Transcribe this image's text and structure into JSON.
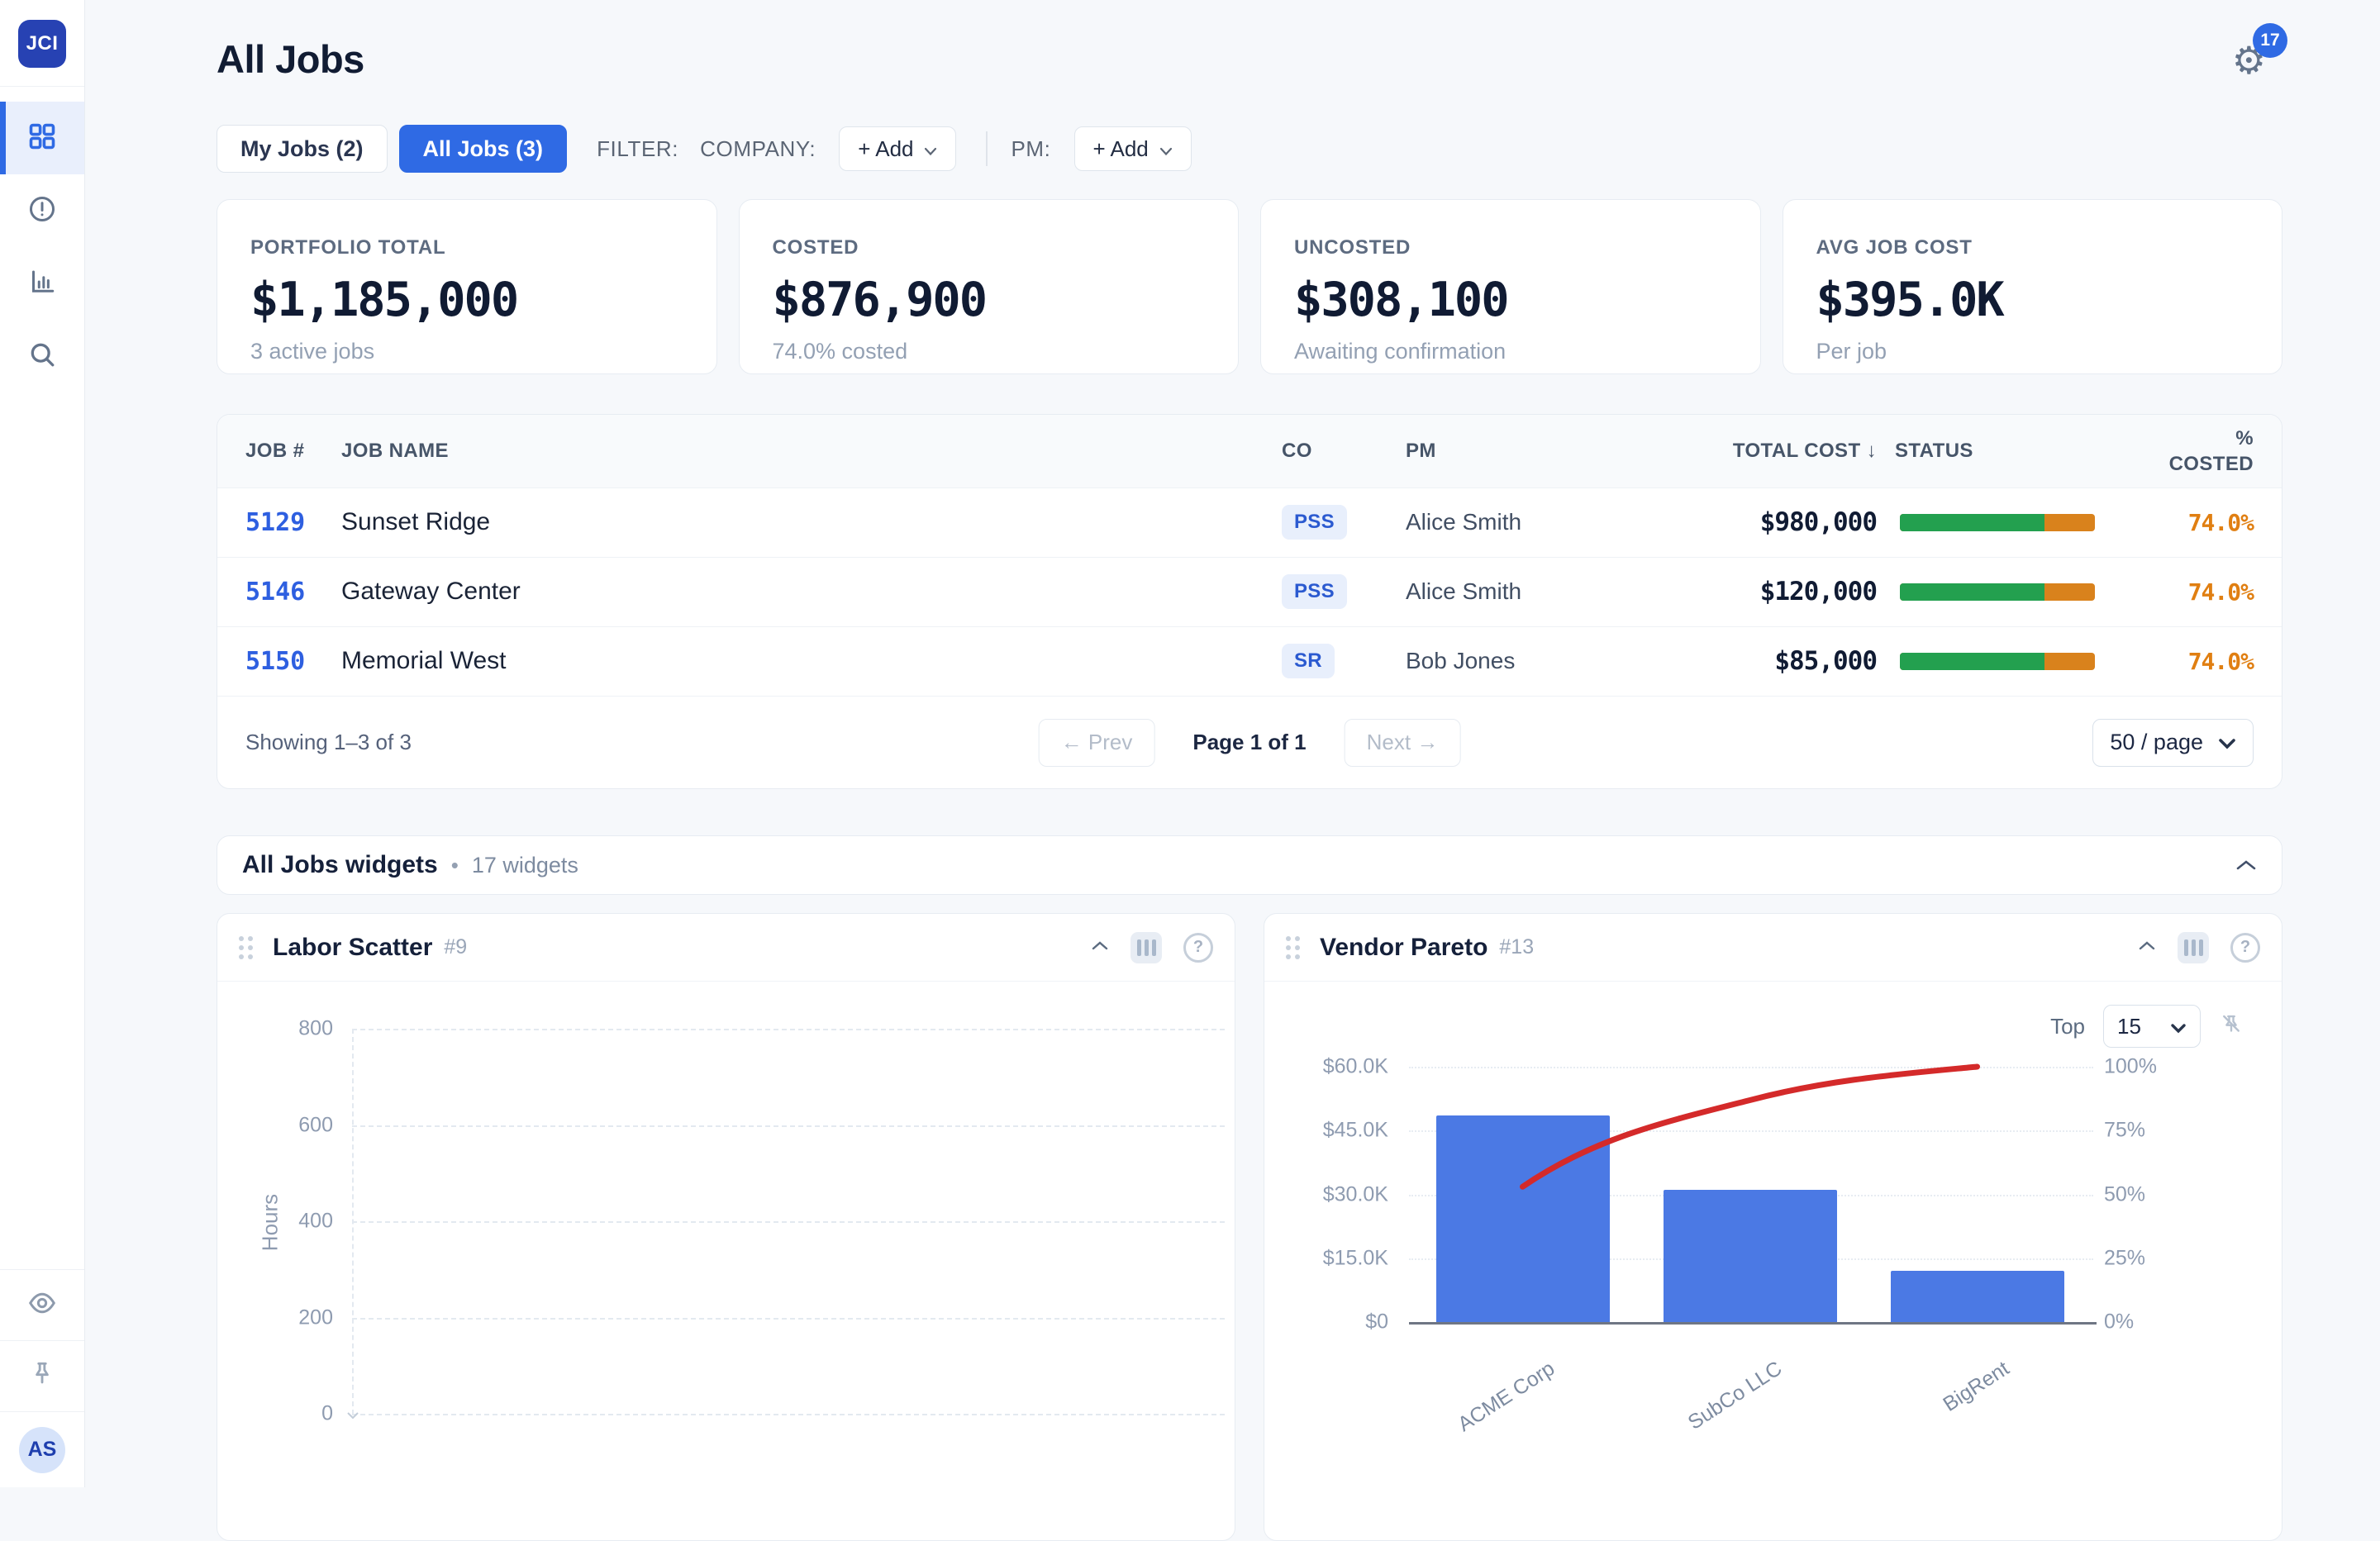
{
  "colors": {
    "accent_blue": "#2f6ae4",
    "logo_blue": "#2742b3",
    "bar_blue": "#4b79e4",
    "line_red": "#d42a2a",
    "status_green": "#23a04f",
    "status_orange": "#d9821c",
    "pct_orange": "#e07f12"
  },
  "app": {
    "logo_text": "JCI",
    "settings_badge": "17",
    "avatar_initials": "AS"
  },
  "header": {
    "title": "All Jobs"
  },
  "toolbar": {
    "my_jobs_tab": "My Jobs (2)",
    "all_jobs_tab": "All Jobs (3)",
    "filter_label": "FILTER:",
    "company_label": "COMPANY:",
    "pm_label": "PM:",
    "add_button": "+ Add"
  },
  "stats": [
    {
      "label": "PORTFOLIO TOTAL",
      "value": "$1,185,000",
      "sub": "3 active jobs"
    },
    {
      "label": "COSTED",
      "value": "$876,900",
      "sub": "74.0% costed"
    },
    {
      "label": "UNCOSTED",
      "value": "$308,100",
      "sub": "Awaiting confirmation"
    },
    {
      "label": "AVG JOB COST",
      "value": "$395.0K",
      "sub": "Per job"
    }
  ],
  "table": {
    "columns": {
      "job_no": "JOB #",
      "job_name": "JOB NAME",
      "co": "CO",
      "pm": "PM",
      "total_cost": "TOTAL COST ↓",
      "status": "STATUS",
      "pct_costed": "% COSTED"
    },
    "rows": [
      {
        "job_no": "5129",
        "name": "Sunset Ridge",
        "co": "PSS",
        "pm": "Alice Smith",
        "total": "$980,000",
        "pct_label": "74.0%",
        "pct": 74
      },
      {
        "job_no": "5146",
        "name": "Gateway Center",
        "co": "PSS",
        "pm": "Alice Smith",
        "total": "$120,000",
        "pct_label": "74.0%",
        "pct": 74
      },
      {
        "job_no": "5150",
        "name": "Memorial West",
        "co": "SR",
        "pm": "Bob Jones",
        "total": "$85,000",
        "pct_label": "74.0%",
        "pct": 74
      }
    ],
    "footer": {
      "showing": "Showing 1–3 of 3",
      "prev": "← Prev",
      "page": "Page 1 of 1",
      "next": "Next →",
      "page_size": "50 / page"
    }
  },
  "widgets_bar": {
    "title": "All Jobs widgets",
    "separator": "•",
    "count": "17 widgets"
  },
  "widgets": {
    "labor": {
      "title": "Labor Scatter",
      "tag": "#9"
    },
    "vendor": {
      "title": "Vendor Pareto",
      "tag": "#13",
      "top_label": "Top",
      "top_value": "15"
    }
  },
  "chart_data": [
    {
      "type": "scatter",
      "title": "Labor Scatter",
      "ylabel": "Hours",
      "yticks": [
        0,
        200,
        400,
        600,
        800
      ],
      "ylim": [
        0,
        800
      ],
      "points": [],
      "grid": "dashed-horizontal"
    },
    {
      "type": "pareto",
      "title": "Vendor Pareto",
      "categories": [
        "ACME Corp",
        "SubCo LLC",
        "BigRent"
      ],
      "values_usd": [
        48500,
        31000,
        12000
      ],
      "cumulative_pct": [
        53.0,
        86.9,
        100
      ],
      "left_ticks": [
        "$0",
        "$15.0K",
        "$30.0K",
        "$45.0K",
        "$60.0K"
      ],
      "right_ticks": [
        "0%",
        "25%",
        "50%",
        "75%",
        "100%"
      ],
      "ylim_left_usd": [
        0,
        60000
      ],
      "ylim_right_pct": [
        0,
        100
      ],
      "bar_color": "#4b79e4",
      "line_color": "#d42a2a",
      "legend": "none"
    }
  ]
}
